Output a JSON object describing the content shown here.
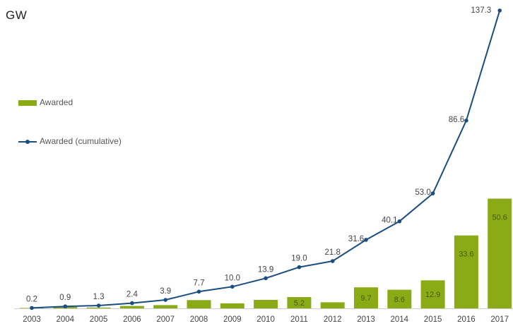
{
  "chart_data": {
    "type": "bar",
    "title": "",
    "unit_label": "GW",
    "categories": [
      "2003",
      "2004",
      "2005",
      "2006",
      "2007",
      "2008",
      "2009",
      "2010",
      "2011",
      "2012",
      "2013",
      "2014",
      "2015",
      "2016",
      "2017"
    ],
    "series": [
      {
        "name": "Awarded",
        "type": "bar",
        "color": "#8aab16",
        "values": [
          0.2,
          0.7,
          0.4,
          1.1,
          1.5,
          3.8,
          2.3,
          3.9,
          5.2,
          2.8,
          9.7,
          8.6,
          12.9,
          33.6,
          50.6
        ],
        "labels": [
          "",
          "",
          "",
          "",
          "",
          "",
          "",
          "",
          "5.2",
          "",
          "9.7",
          "8.6",
          "12.9",
          "33.6",
          "50.6"
        ]
      },
      {
        "name": "Awarded (cumulative)",
        "type": "line",
        "color": "#1a4e80",
        "values": [
          0.2,
          0.9,
          1.3,
          2.4,
          3.9,
          7.7,
          10.0,
          13.9,
          19.0,
          21.8,
          31.6,
          40.1,
          53.0,
          86.6,
          137.3
        ],
        "labels": [
          "0.2",
          "0.9",
          "1.3",
          "2.4",
          "3.9",
          "7.7",
          "10.0",
          "13.9",
          "19.0",
          "21.8",
          "31.6",
          "40.1",
          "53.0",
          "86.6",
          "137.3"
        ]
      }
    ],
    "ylim": [
      0,
      140
    ],
    "grid": false,
    "legend_position": "left"
  }
}
